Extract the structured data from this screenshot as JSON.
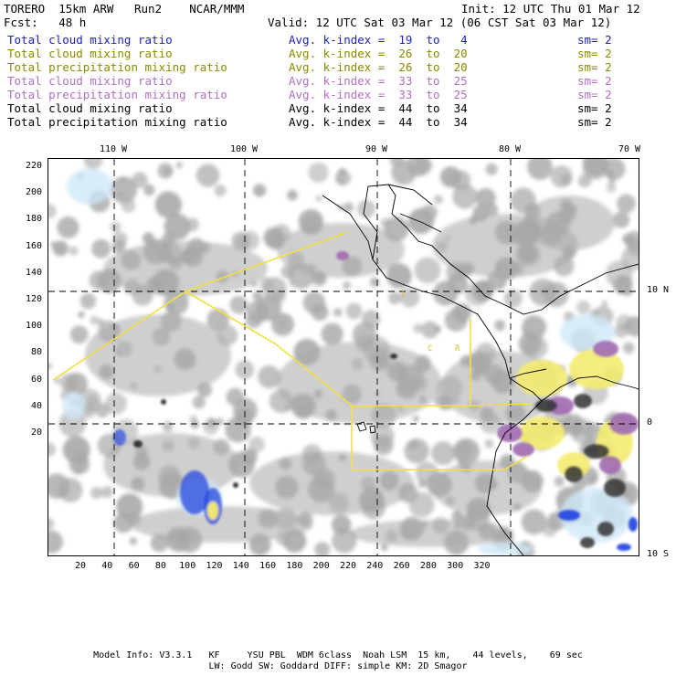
{
  "header": {
    "model": "TORERO  15km ARW   Run2    NCAR/MMM",
    "init": "Init: 12 UTC Thu 01 Mar 12",
    "fcst": "Fcst:   48 h",
    "valid": "Valid: 12 UTC Sat 03 Mar 12 (06 CST Sat 03 Mar 12)"
  },
  "legend": [
    {
      "field": "Total cloud mixing ratio",
      "index": "Avg. k-index =  19  to   4",
      "sm": "sm= 2",
      "color": "#2020c8"
    },
    {
      "field": "Total cloud mixing ratio",
      "index": "Avg. k-index =  26  to  20",
      "sm": "sm= 2",
      "color": "#8a8a00"
    },
    {
      "field": "Total precipitation mixing ratio",
      "index": "Avg. k-index =  26  to  20",
      "sm": "sm= 2",
      "color": "#8a8a00"
    },
    {
      "field": "Total cloud mixing ratio",
      "index": "Avg. k-index =  33  to  25",
      "sm": "sm= 2",
      "color": "#b070c0"
    },
    {
      "field": "Total precipitation mixing ratio",
      "index": "Avg. k-index =  33  to  25",
      "sm": "sm= 2",
      "color": "#b070c0"
    },
    {
      "field": "Total cloud mixing ratio",
      "index": "Avg. k-index =  44  to  34",
      "sm": "sm= 2",
      "color": "#000000"
    },
    {
      "field": "Total precipitation mixing ratio",
      "index": "Avg. k-index =  44  to  34",
      "sm": "sm= 2",
      "color": "#000000"
    }
  ],
  "map": {
    "lon_labels": [
      "110 W",
      "100 W",
      "90 W",
      "80 W",
      "70 W"
    ],
    "lat_labels": [
      "10 N",
      "0",
      "10 S"
    ],
    "x_ticks": [
      "20",
      "40",
      "60",
      "80",
      "100",
      "120",
      "140",
      "160",
      "180",
      "200",
      "220",
      "240",
      "260",
      "280",
      "300",
      "320"
    ],
    "y_ticks": [
      "220",
      "200",
      "180",
      "160",
      "140",
      "120",
      "100",
      "80",
      "60",
      "40",
      "20"
    ],
    "box_labels": [
      "1",
      "C",
      "R"
    ],
    "colors": {
      "cloud_gray": "#a8a8a8",
      "boundary_yellow": "#f0e040",
      "light_blue": "#cfe8f7",
      "purple": "#a06ab0",
      "yellow_fill": "#f4ec70",
      "blue": "#2040e0"
    }
  },
  "footer": {
    "line1": "Model Info: V3.3.1   KF     YSU PBL  WDM 6class  Noah LSM  15 km,    44 levels,    69 sec",
    "line2": "LW: Godd SW: Goddard DIFF: simple KM: 2D Smagor"
  }
}
